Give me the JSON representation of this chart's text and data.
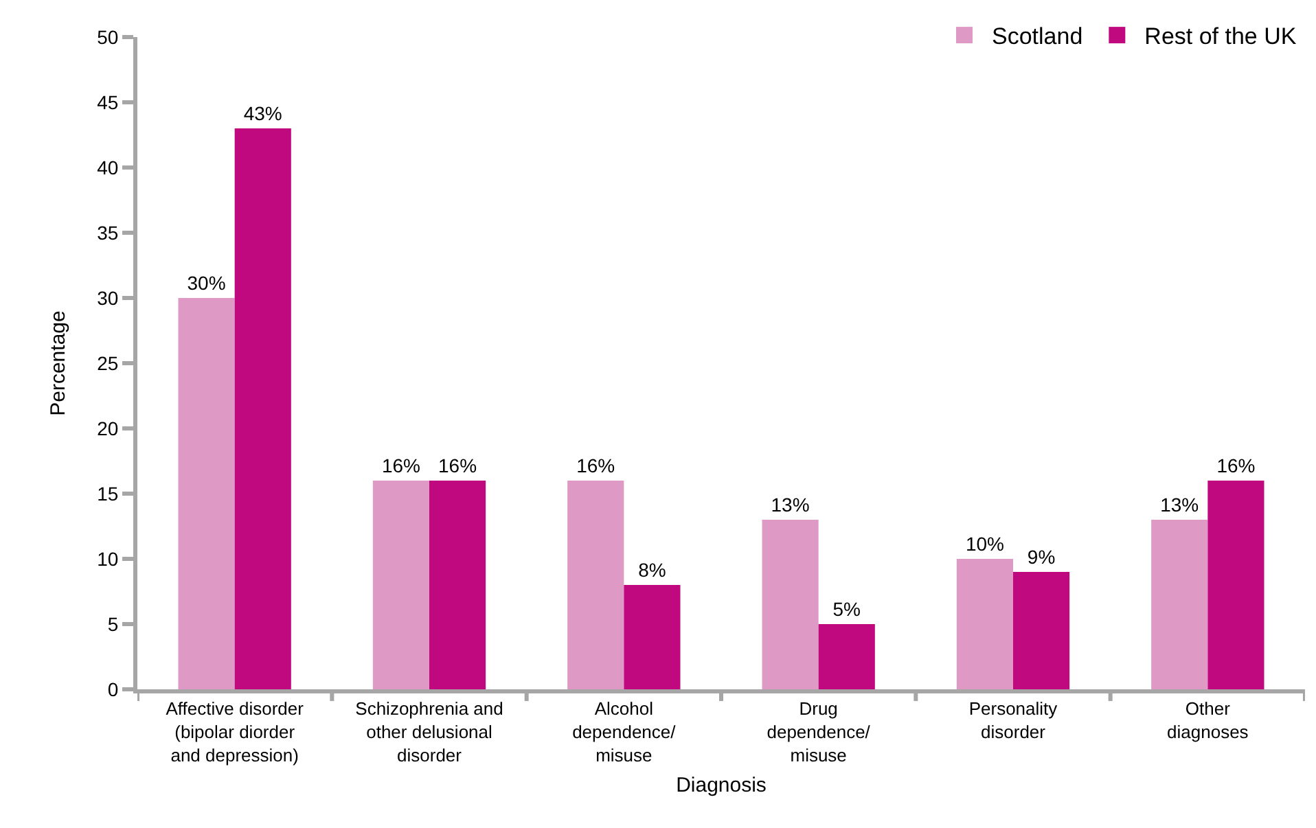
{
  "chart_data": {
    "type": "bar",
    "xlabel": "Diagnosis",
    "ylabel": "Percentage",
    "categories": [
      "Affective disorder\n(bipolar diorder\nand depression)",
      "Schizophrenia and\nother delusional\ndisorder",
      "Alcohol\ndependence/\nmisuse",
      "Drug\ndependence/\nmisuse",
      "Personality\ndisorder",
      "Other\ndiagnoses"
    ],
    "series": [
      {
        "name": "Scotland",
        "color": "#de99c5",
        "values": [
          30,
          16,
          16,
          13,
          10,
          13
        ],
        "value_labels": [
          "30%",
          "16%",
          "16%",
          "13%",
          "10%",
          "13%"
        ]
      },
      {
        "name": "Rest of the UK",
        "color": "#c0097f",
        "values": [
          43,
          16,
          8,
          5,
          9,
          16
        ],
        "value_labels": [
          "43%",
          "16%",
          "8%",
          "5%",
          "9%",
          "16%"
        ]
      }
    ],
    "ylim": [
      0,
      50
    ],
    "yticks": [
      0,
      5,
      10,
      15,
      20,
      25,
      30,
      35,
      40,
      45,
      50
    ],
    "legend": "top right"
  }
}
